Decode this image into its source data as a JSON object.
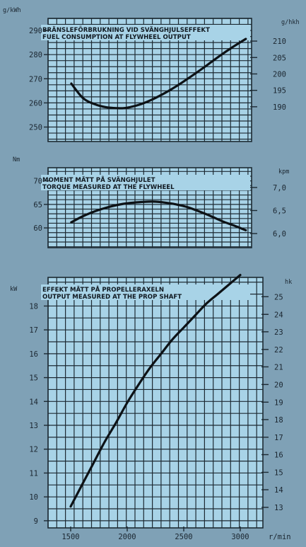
{
  "colors": {
    "background": "#7fa1b6",
    "panel": "#a8d3e7",
    "grid": "#1d2a33",
    "curve": "#0d1216",
    "text": "#1b2630"
  },
  "chart_data": [
    {
      "type": "line",
      "title": "BRÄNSLEFÖRBRUKNING VID SVÄNGHJULSEFFEKT",
      "subtitle": "FUEL CONSUMPTION AT FLYWHEEL OUTPUT",
      "left_unit": "g/kWh",
      "right_unit": "g/hkh",
      "grid": true,
      "xlim": [
        1300,
        3050
      ],
      "ylim": [
        244,
        295
      ],
      "left_ticks": [
        250,
        260,
        270,
        280,
        290
      ],
      "right_ticks": [
        {
          "label": "190",
          "y": 258.4
        },
        {
          "label": "195",
          "y": 265.2
        },
        {
          "label": "200",
          "y": 272.0
        },
        {
          "label": "205",
          "y": 278.8
        },
        {
          "label": "210",
          "y": 285.6
        }
      ],
      "series": [
        {
          "x": [
            1500,
            1600,
            1700,
            1800,
            1900,
            1950,
            2000,
            2100,
            2200,
            2300,
            2400,
            2500,
            2600,
            2700,
            2800,
            2900,
            3000
          ],
          "values": [
            268,
            262,
            259.5,
            258.2,
            257.8,
            257.8,
            258.2,
            259.5,
            261.5,
            264,
            266.8,
            270,
            273.3,
            276.8,
            280.3,
            283.5,
            286.5
          ]
        }
      ]
    },
    {
      "type": "line",
      "title": "MOMENT MÄTT PÅ SVÄNGHJULET",
      "subtitle": "TORQUE MEASURED AT THE FLYWHEEL",
      "left_unit": "Nm",
      "right_unit": "kpm",
      "grid": true,
      "xlim": [
        1300,
        3050
      ],
      "ylim": [
        55.8,
        72.8
      ],
      "left_ticks": [
        60,
        65,
        70
      ],
      "right_ticks": [
        {
          "label": "6,0",
          "y": 58.8
        },
        {
          "label": "6,5",
          "y": 63.7
        },
        {
          "label": "7,0",
          "y": 68.6
        }
      ],
      "series": [
        {
          "x": [
            1500,
            1600,
            1700,
            1800,
            1900,
            2000,
            2100,
            2200,
            2300,
            2400,
            2500,
            2600,
            2700,
            2800,
            2900,
            3000
          ],
          "values": [
            61.2,
            62.5,
            63.5,
            64.3,
            64.9,
            65.3,
            65.5,
            65.6,
            65.4,
            65.0,
            64.4,
            63.5,
            62.5,
            61.4,
            60.5,
            59.5
          ]
        }
      ]
    },
    {
      "type": "line",
      "title": "EFFEKT MÄTT PÅ PROPELLERAXELN",
      "subtitle": "OUTPUT MEASURED AT THE PROP SHAFT",
      "left_unit": "kW",
      "right_unit": "hk",
      "xlabel": "r/min",
      "grid": true,
      "xlim": [
        1300,
        3200
      ],
      "ylim": [
        8.7,
        19.2
      ],
      "x_ticks": [
        1500,
        2000,
        2500,
        3000
      ],
      "left_ticks": [
        9,
        10,
        11,
        12,
        13,
        14,
        15,
        16,
        17,
        18
      ],
      "right_ticks": [
        {
          "label": "13",
          "y": 9.56
        },
        {
          "label": "14",
          "y": 10.3
        },
        {
          "label": "15",
          "y": 11.03
        },
        {
          "label": "16",
          "y": 11.77
        },
        {
          "label": "17",
          "y": 12.5
        },
        {
          "label": "18",
          "y": 13.24
        },
        {
          "label": "19",
          "y": 13.97
        },
        {
          "label": "20",
          "y": 14.71
        },
        {
          "label": "21",
          "y": 15.45
        },
        {
          "label": "22",
          "y": 16.18
        },
        {
          "label": "23",
          "y": 16.92
        },
        {
          "label": "24",
          "y": 17.65
        },
        {
          "label": "25",
          "y": 18.39
        }
      ],
      "series": [
        {
          "x": [
            1500,
            1600,
            1700,
            1800,
            1900,
            2000,
            2100,
            2200,
            2300,
            2400,
            2500,
            2600,
            2700,
            2800,
            2900,
            3000
          ],
          "values": [
            9.6,
            10.5,
            11.4,
            12.3,
            13.1,
            13.95,
            14.7,
            15.4,
            16.0,
            16.6,
            17.1,
            17.6,
            18.1,
            18.5,
            18.9,
            19.3
          ]
        }
      ]
    }
  ]
}
